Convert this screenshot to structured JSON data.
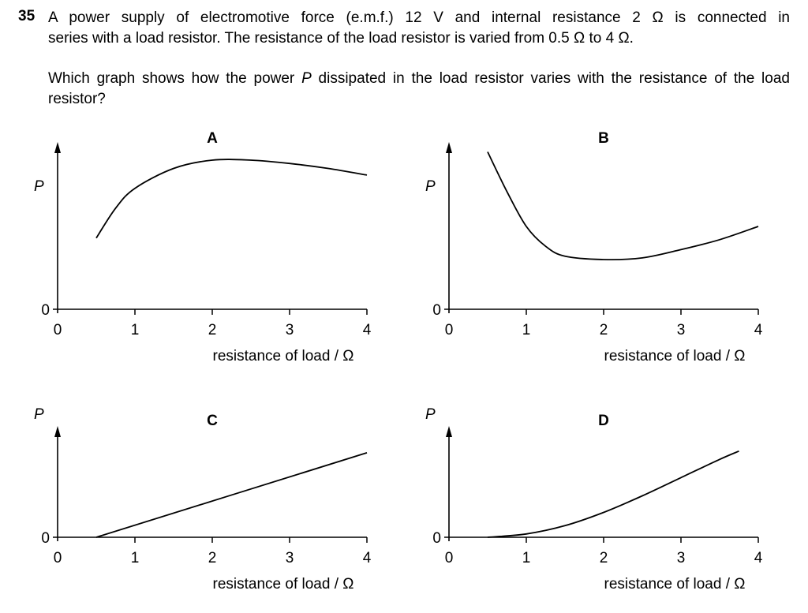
{
  "question": {
    "number": "35",
    "line1": "A power supply of electromotive force (e.m.f.) 12 V and internal resistance 2 Ω is connected in",
    "line2": "series with a load resistor. The resistance of the load resistor is varied from 0.5 Ω to 4 Ω.",
    "prompt_before": "Which graph shows how the power ",
    "prompt_var": "P",
    "prompt_after": " dissipated in the load resistor varies with the resistance of the load resistor?"
  },
  "chart_data": [
    {
      "type": "line",
      "title": "A",
      "xlabel": "resistance of load / Ω",
      "ylabel": "P",
      "xticks": [
        "0",
        "1",
        "2",
        "3",
        "4"
      ],
      "yticks": [
        "0"
      ],
      "xlim": [
        0,
        4
      ],
      "x": [
        0.5,
        0.75,
        1.0,
        1.5,
        2.0,
        2.5,
        3.0,
        3.5,
        4.0
      ],
      "y": [
        0.43,
        0.61,
        0.73,
        0.85,
        0.9,
        0.9,
        0.88,
        0.85,
        0.81
      ]
    },
    {
      "type": "line",
      "title": "B",
      "xlabel": "resistance of load / Ω",
      "ylabel": "P",
      "xticks": [
        "0",
        "1",
        "2",
        "3",
        "4"
      ],
      "yticks": [
        "0"
      ],
      "xlim": [
        0,
        4
      ],
      "x": [
        0.5,
        0.75,
        1.0,
        1.25,
        1.5,
        2.0,
        2.5,
        3.0,
        3.5,
        4.0
      ],
      "y": [
        0.95,
        0.71,
        0.5,
        0.38,
        0.32,
        0.3,
        0.31,
        0.36,
        0.42,
        0.5
      ]
    },
    {
      "type": "line",
      "title": "C",
      "xlabel": "resistance of load / Ω",
      "ylabel": "P",
      "xticks": [
        "0",
        "1",
        "2",
        "3",
        "4"
      ],
      "yticks": [
        "0"
      ],
      "xlim": [
        0,
        4
      ],
      "x": [
        0.5,
        4.0
      ],
      "y": [
        0.0,
        0.51
      ]
    },
    {
      "type": "line",
      "title": "D",
      "xlabel": "resistance of load / Ω",
      "ylabel": "P",
      "xticks": [
        "0",
        "1",
        "2",
        "3",
        "4"
      ],
      "yticks": [
        "0"
      ],
      "xlim": [
        0,
        4
      ],
      "x": [
        0.5,
        1.0,
        1.5,
        2.0,
        2.5,
        3.0,
        3.5,
        3.75
      ],
      "y": [
        0.0,
        0.02,
        0.07,
        0.15,
        0.25,
        0.36,
        0.47,
        0.52
      ]
    }
  ]
}
